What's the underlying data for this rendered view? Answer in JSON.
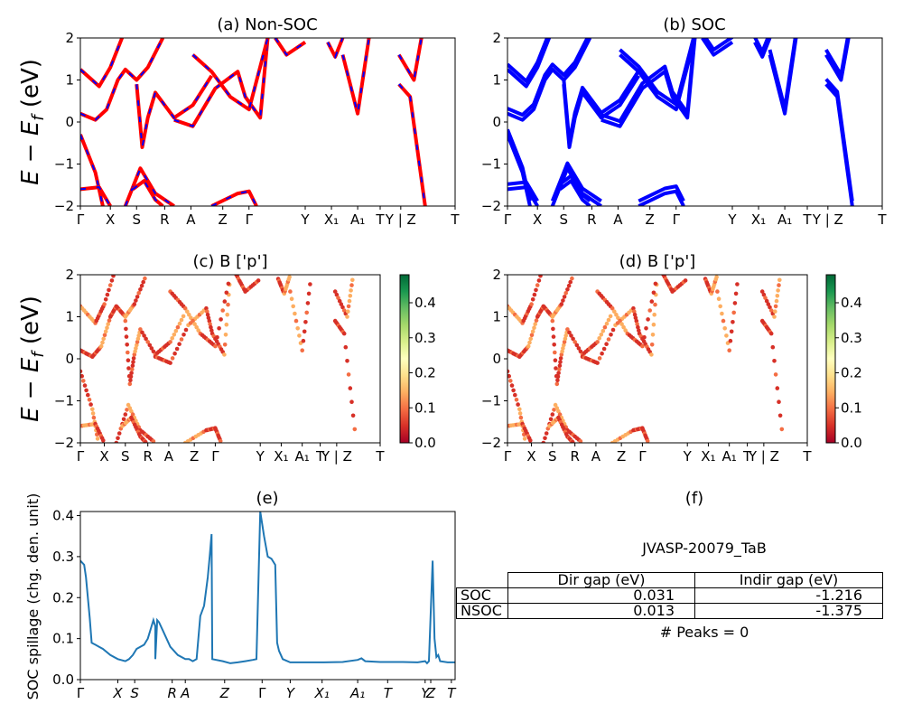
{
  "chart_data": [
    {
      "panel": "a",
      "type": "line",
      "title": "(a) Non-SOC",
      "ylabel": "E − E_f (eV)",
      "ylim": [
        -2,
        2
      ],
      "yticks": [
        "−2",
        "−1",
        "0",
        "1",
        "2"
      ],
      "xticks": [
        "Γ",
        "X",
        "S",
        "R",
        "A",
        "Z",
        "Γ",
        "Y",
        "X₁",
        "A₁",
        "T",
        "Y | Z",
        "T"
      ],
      "xtick_pos": [
        0,
        0.08,
        0.15,
        0.225,
        0.295,
        0.38,
        0.45,
        0.6,
        0.67,
        0.74,
        0.8,
        0.855,
        1.0
      ],
      "series": [
        {
          "color": "#ff0000",
          "style": "solid"
        },
        {
          "color": "#0000ff",
          "style": "dashed"
        }
      ],
      "bands_description_values": [
        [
          [
            0,
            1.25
          ],
          [
            0.05,
            0.85
          ],
          [
            0.08,
            1.3
          ],
          [
            0.12,
            2.2
          ]
        ],
        [
          [
            0,
            0.2
          ],
          [
            0.04,
            0.05
          ],
          [
            0.07,
            0.3
          ],
          [
            0.1,
            1.0
          ],
          [
            0.12,
            1.25
          ],
          [
            0.15,
            1.0
          ],
          [
            0.18,
            1.3
          ],
          [
            0.22,
            2.0
          ]
        ],
        [
          [
            0,
            -0.3
          ],
          [
            0.04,
            -1.2
          ],
          [
            0.06,
            -2.0
          ]
        ],
        [
          [
            0,
            -1.6
          ],
          [
            0.05,
            -1.55
          ],
          [
            0.08,
            -2.0
          ]
        ],
        [
          [
            0.15,
            0.9
          ],
          [
            0.165,
            -0.6
          ],
          [
            0.18,
            0.1
          ],
          [
            0.2,
            0.7
          ],
          [
            0.25,
            0.1
          ],
          [
            0.3,
            0.4
          ],
          [
            0.35,
            1.1
          ]
        ],
        [
          [
            0.12,
            -2.0
          ],
          [
            0.16,
            -1.1
          ],
          [
            0.2,
            -1.7
          ],
          [
            0.25,
            -2.0
          ]
        ],
        [
          [
            0.14,
            -1.6
          ],
          [
            0.17,
            -1.4
          ],
          [
            0.2,
            -1.85
          ],
          [
            0.22,
            -2.0
          ]
        ],
        [
          [
            0.25,
            0.05
          ],
          [
            0.3,
            -0.1
          ],
          [
            0.36,
            0.8
          ],
          [
            0.42,
            1.2
          ],
          [
            0.44,
            0.6
          ],
          [
            0.48,
            0.1
          ],
          [
            0.5,
            2.0
          ]
        ],
        [
          [
            0.3,
            1.6
          ],
          [
            0.35,
            1.2
          ],
          [
            0.4,
            0.6
          ],
          [
            0.45,
            0.3
          ],
          [
            0.5,
            2.0
          ]
        ],
        [
          [
            0.35,
            -2.0
          ],
          [
            0.42,
            -1.7
          ],
          [
            0.45,
            -1.65
          ],
          [
            0.47,
            -2.0
          ]
        ],
        [
          [
            0.52,
            2.0
          ],
          [
            0.55,
            1.6
          ],
          [
            0.6,
            1.9
          ]
        ],
        [
          [
            0.66,
            1.9
          ],
          [
            0.68,
            1.55
          ],
          [
            0.7,
            2.0
          ]
        ],
        [
          [
            0.7,
            1.6
          ],
          [
            0.74,
            0.2
          ],
          [
            0.77,
            2.0
          ]
        ],
        [
          [
            0.85,
            0.9
          ],
          [
            0.88,
            0.6
          ],
          [
            0.92,
            -2.0
          ]
        ],
        [
          [
            0.85,
            1.6
          ],
          [
            0.89,
            1.0
          ],
          [
            0.91,
            2.0
          ]
        ]
      ]
    },
    {
      "panel": "b",
      "type": "line",
      "title": "(b) SOC",
      "ylim": [
        -2,
        2
      ],
      "yticks": [
        "−2",
        "−1",
        "0",
        "1",
        "2"
      ],
      "xticks": [
        "Γ",
        "X",
        "S",
        "R",
        "A",
        "Z",
        "Γ",
        "Y",
        "X₁",
        "A₁",
        "T",
        "Y | Z",
        "T"
      ],
      "series": [
        {
          "color": "#0000ff",
          "style": "solid"
        }
      ]
    },
    {
      "panel": "c",
      "type": "scatter",
      "title": "(c)  B ['p']",
      "ylabel": "E − E_f (eV)",
      "ylim": [
        -2,
        2
      ],
      "yticks": [
        "−2",
        "−1",
        "0",
        "1",
        "2"
      ],
      "xticks": [
        "Γ",
        "X",
        "S",
        "R",
        "A",
        "Z",
        "Γ",
        "Y",
        "X₁",
        "A₁",
        "T",
        "Y | Z",
        "T"
      ],
      "colorbar": {
        "cmap": "RdYlGn",
        "min": 0.0,
        "max": 0.48,
        "ticks": [
          "0.0",
          "0.1",
          "0.2",
          "0.3",
          "0.4"
        ]
      }
    },
    {
      "panel": "d",
      "type": "scatter",
      "title": "(d) B ['p']",
      "ylim": [
        -2,
        2
      ],
      "yticks": [
        "−2",
        "−1",
        "0",
        "1",
        "2"
      ],
      "xticks": [
        "Γ",
        "X",
        "S",
        "R",
        "A",
        "Z",
        "Γ",
        "Y",
        "X₁",
        "A₁",
        "T",
        "Y | Z",
        "T"
      ],
      "colorbar": {
        "cmap": "RdYlGn",
        "min": 0.0,
        "max": 0.48,
        "ticks": [
          "0.0",
          "0.1",
          "0.2",
          "0.3",
          "0.4"
        ]
      }
    },
    {
      "panel": "e",
      "type": "line",
      "title": "(e)",
      "ylabel": "SOC spillage (chg. den. unit)",
      "ylim": [
        0,
        0.41
      ],
      "yticks": [
        "0.0",
        "0.1",
        "0.2",
        "0.3",
        "0.4"
      ],
      "xticks": [
        "Γ",
        "X",
        "S",
        "R",
        "A",
        "Z",
        "Γ",
        "Y",
        "X₁",
        "A₁",
        "T",
        "Y",
        "Z",
        "T"
      ],
      "xtick_pos": [
        0,
        0.1,
        0.145,
        0.245,
        0.28,
        0.385,
        0.485,
        0.56,
        0.645,
        0.74,
        0.82,
        0.92,
        0.935,
        0.99
      ],
      "color": "#1f77b4",
      "points": [
        [
          0,
          0.29
        ],
        [
          0.01,
          0.28
        ],
        [
          0.015,
          0.25
        ],
        [
          0.02,
          0.2
        ],
        [
          0.025,
          0.15
        ],
        [
          0.03,
          0.09
        ],
        [
          0.04,
          0.085
        ],
        [
          0.05,
          0.08
        ],
        [
          0.06,
          0.075
        ],
        [
          0.08,
          0.06
        ],
        [
          0.1,
          0.05
        ],
        [
          0.12,
          0.045
        ],
        [
          0.13,
          0.05
        ],
        [
          0.14,
          0.06
        ],
        [
          0.15,
          0.075
        ],
        [
          0.17,
          0.085
        ],
        [
          0.18,
          0.1
        ],
        [
          0.19,
          0.13
        ],
        [
          0.195,
          0.145
        ],
        [
          0.2,
          0.13
        ],
        [
          0.2,
          0.05
        ],
        [
          0.205,
          0.145
        ],
        [
          0.21,
          0.14
        ],
        [
          0.22,
          0.12
        ],
        [
          0.24,
          0.08
        ],
        [
          0.26,
          0.06
        ],
        [
          0.28,
          0.05
        ],
        [
          0.29,
          0.05
        ],
        [
          0.3,
          0.045
        ],
        [
          0.31,
          0.05
        ],
        [
          0.32,
          0.155
        ],
        [
          0.33,
          0.18
        ],
        [
          0.34,
          0.25
        ],
        [
          0.345,
          0.3
        ],
        [
          0.35,
          0.355
        ],
        [
          0.352,
          0.05
        ],
        [
          0.38,
          0.045
        ],
        [
          0.4,
          0.04
        ],
        [
          0.42,
          0.042
        ],
        [
          0.44,
          0.045
        ],
        [
          0.46,
          0.048
        ],
        [
          0.47,
          0.05
        ],
        [
          0.48,
          0.41
        ],
        [
          0.49,
          0.35
        ],
        [
          0.5,
          0.3
        ],
        [
          0.51,
          0.295
        ],
        [
          0.52,
          0.28
        ],
        [
          0.525,
          0.09
        ],
        [
          0.53,
          0.07
        ],
        [
          0.54,
          0.05
        ],
        [
          0.56,
          0.042
        ],
        [
          0.6,
          0.042
        ],
        [
          0.65,
          0.042
        ],
        [
          0.7,
          0.043
        ],
        [
          0.74,
          0.048
        ],
        [
          0.75,
          0.052
        ],
        [
          0.76,
          0.045
        ],
        [
          0.8,
          0.043
        ],
        [
          0.86,
          0.043
        ],
        [
          0.9,
          0.042
        ],
        [
          0.92,
          0.045
        ],
        [
          0.925,
          0.04
        ],
        [
          0.93,
          0.045
        ],
        [
          0.94,
          0.29
        ],
        [
          0.945,
          0.1
        ],
        [
          0.95,
          0.055
        ],
        [
          0.955,
          0.06
        ],
        [
          0.96,
          0.045
        ],
        [
          0.98,
          0.042
        ],
        [
          1.0,
          0.042
        ]
      ]
    }
  ],
  "panel_f": {
    "title": "(f)",
    "label": "JVASP-20079_TaB",
    "columns": [
      "Dir gap (eV)",
      "Indir gap (eV)"
    ],
    "rows": [
      {
        "label": "SOC",
        "dir": "0.031",
        "indir": "-1.216"
      },
      {
        "label": "NSOC",
        "dir": "0.013",
        "indir": "-1.375"
      }
    ],
    "peaks": "# Peaks = 0"
  }
}
